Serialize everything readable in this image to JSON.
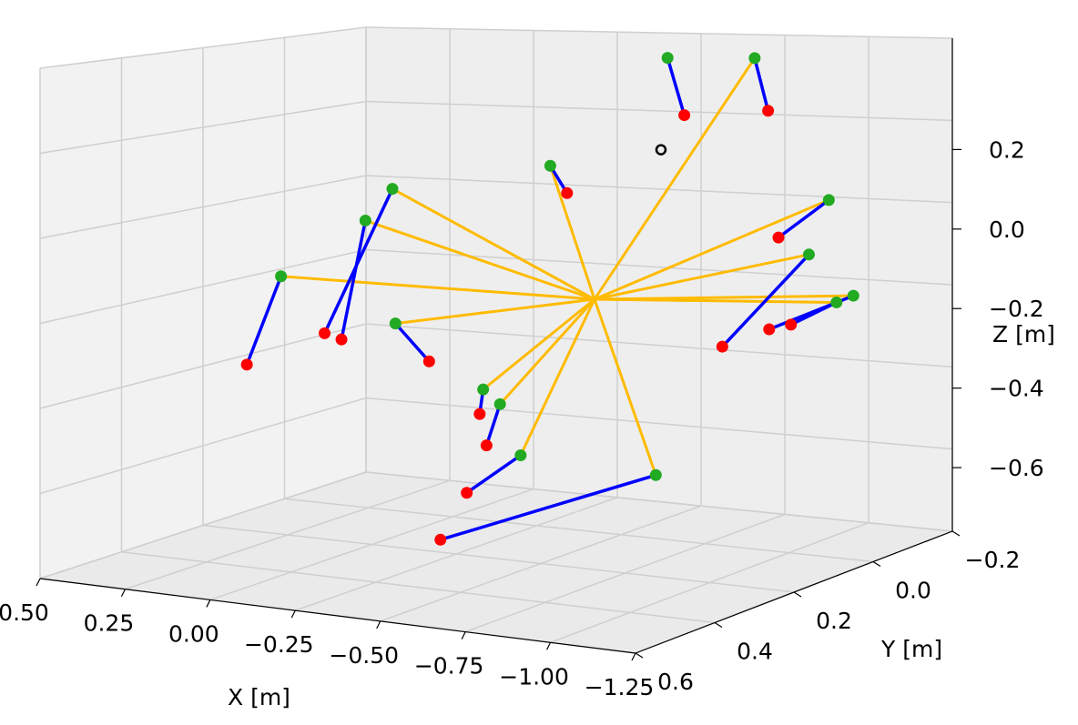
{
  "chart_data": {
    "type": "scatter",
    "projection": "3d",
    "xlabel": "X  [m]",
    "ylabel": "Y  [m]",
    "zlabel": "Z  [m]",
    "xlim": [
      0.5,
      -1.25
    ],
    "ylim": [
      0.6,
      -0.2
    ],
    "zlim": [
      -0.6,
      0.2
    ],
    "x_ticks": [
      "0.50",
      "0.25",
      "0.00",
      "−0.25",
      "−0.50",
      "−0.75",
      "−1.00",
      "−1.25"
    ],
    "y_ticks": [
      "0.6",
      "0.4",
      "0.2",
      "0.0",
      "−0.2"
    ],
    "z_ticks": [
      "0.2",
      "0.0",
      "−0.2",
      "−0.4",
      "−0.6"
    ],
    "grid": true,
    "colors": {
      "estimated": "#22aa22",
      "measured": "#ff0000",
      "error_line": "#0000ff",
      "ray_line": "#ffbb00",
      "source": "#000000"
    },
    "source_marker": {
      "x": -0.2,
      "y": -0.35,
      "z": 0.0
    },
    "ray_origin": {
      "x": -0.6,
      "y": 0.15,
      "z": -0.15
    },
    "pairs": [
      {
        "green": {
          "x": -0.4,
          "y": -0.2,
          "z": 0.28
        },
        "red": {
          "x": -0.45,
          "y": -0.2,
          "z": 0.15
        },
        "ray": false
      },
      {
        "green": {
          "x": -0.66,
          "y": -0.2,
          "z": 0.3
        },
        "red": {
          "x": -0.7,
          "y": -0.2,
          "z": 0.18
        },
        "ray": true
      },
      {
        "green": {
          "x": -1.0,
          "y": -0.1,
          "z": 0.03
        },
        "red": {
          "x": -0.85,
          "y": -0.1,
          "z": -0.07
        },
        "ray": true
      },
      {
        "green": {
          "x": -1.0,
          "y": -0.05,
          "z": -0.08
        },
        "red": {
          "x": -0.92,
          "y": 0.1,
          "z": -0.25
        },
        "ray": true
      },
      {
        "green": {
          "x": -1.25,
          "y": 0.05,
          "z": -0.12
        },
        "red": {
          "x": -1.0,
          "y": 0.05,
          "z": -0.22
        },
        "ray": true
      },
      {
        "green": {
          "x": -1.2,
          "y": 0.05,
          "z": -0.14
        },
        "red": {
          "x": -1.1,
          "y": 0.08,
          "z": -0.19
        },
        "ray": true
      },
      {
        "green": {
          "x": -0.05,
          "y": -0.2,
          "z": -0.0
        },
        "red": {
          "x": -0.1,
          "y": -0.2,
          "z": -0.06
        },
        "ray": true
      },
      {
        "green": {
          "x": 0.3,
          "y": -0.1,
          "z": -0.05
        },
        "red": {
          "x": 0.2,
          "y": 0.15,
          "z": -0.3
        },
        "ray": true
      },
      {
        "green": {
          "x": 0.32,
          "y": -0.05,
          "z": -0.11
        },
        "red": {
          "x": 0.15,
          "y": 0.15,
          "z": -0.31
        },
        "ray": true
      },
      {
        "green": {
          "x": 0.45,
          "y": 0.05,
          "z": -0.22
        },
        "red": {
          "x": 0.25,
          "y": 0.3,
          "z": -0.33
        },
        "ray": true
      },
      {
        "green": {
          "x": 0.05,
          "y": 0.1,
          "z": -0.28
        },
        "red": {
          "x": -0.05,
          "y": 0.1,
          "z": -0.36
        },
        "ray": true
      },
      {
        "green": {
          "x": -0.27,
          "y": 0.15,
          "z": -0.39
        },
        "red": {
          "x": -0.2,
          "y": 0.1,
          "z": -0.47
        },
        "ray": true
      },
      {
        "green": {
          "x": -0.32,
          "y": 0.15,
          "z": -0.42
        },
        "red": {
          "x": -0.28,
          "y": 0.15,
          "z": -0.52
        },
        "ray": true
      },
      {
        "green": {
          "x": -0.5,
          "y": 0.25,
          "z": -0.49
        },
        "red": {
          "x": -0.4,
          "y": 0.3,
          "z": -0.57
        },
        "ray": true
      },
      {
        "green": {
          "x": -0.9,
          "y": 0.25,
          "z": -0.5
        },
        "red": {
          "x": -0.5,
          "y": 0.45,
          "z": -0.62
        },
        "ray": true
      }
    ]
  }
}
